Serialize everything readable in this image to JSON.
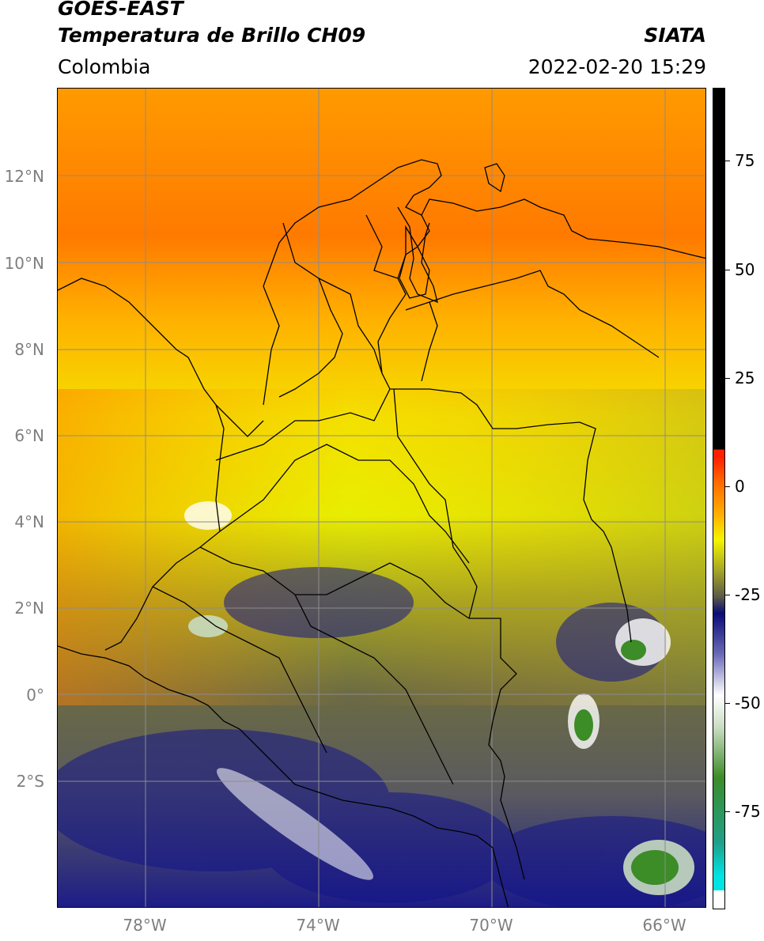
{
  "header": {
    "satellite": "GOES-EAST",
    "product": "Temperatura de Brillo CH09",
    "source": "SIATA",
    "region": "Colombia",
    "datetime": "2022-02-20 15:29"
  },
  "axes": {
    "lat_labels": [
      "12°N",
      "10°N",
      "8°N",
      "6°N",
      "4°N",
      "2°N",
      "0°",
      "2°S"
    ],
    "lon_labels": [
      "78°W",
      "74°W",
      "70°W",
      "66°W"
    ]
  },
  "colorbar": {
    "ticks": [
      "75",
      "50",
      "25",
      "0",
      "-25",
      "-50",
      "-75"
    ],
    "stops": [
      {
        "color": "#ffffff"
      },
      {
        "color": "#00e3e3"
      },
      {
        "color": "#1fa08a"
      },
      {
        "color": "#3c8c28"
      },
      {
        "color": "#c8dcc0"
      },
      {
        "color": "#ffffff"
      },
      {
        "color": "#6a6ab8"
      },
      {
        "color": "#0b0b78"
      },
      {
        "color": "#5a5a4a"
      },
      {
        "color": "#a0a028"
      },
      {
        "color": "#f4f400"
      },
      {
        "color": "#ffb000"
      },
      {
        "color": "#ff6a00"
      },
      {
        "color": "#ff2000"
      },
      {
        "color": "#000000"
      }
    ]
  },
  "colors": {
    "grid": "#8c8c8c",
    "borders": "#000000"
  }
}
